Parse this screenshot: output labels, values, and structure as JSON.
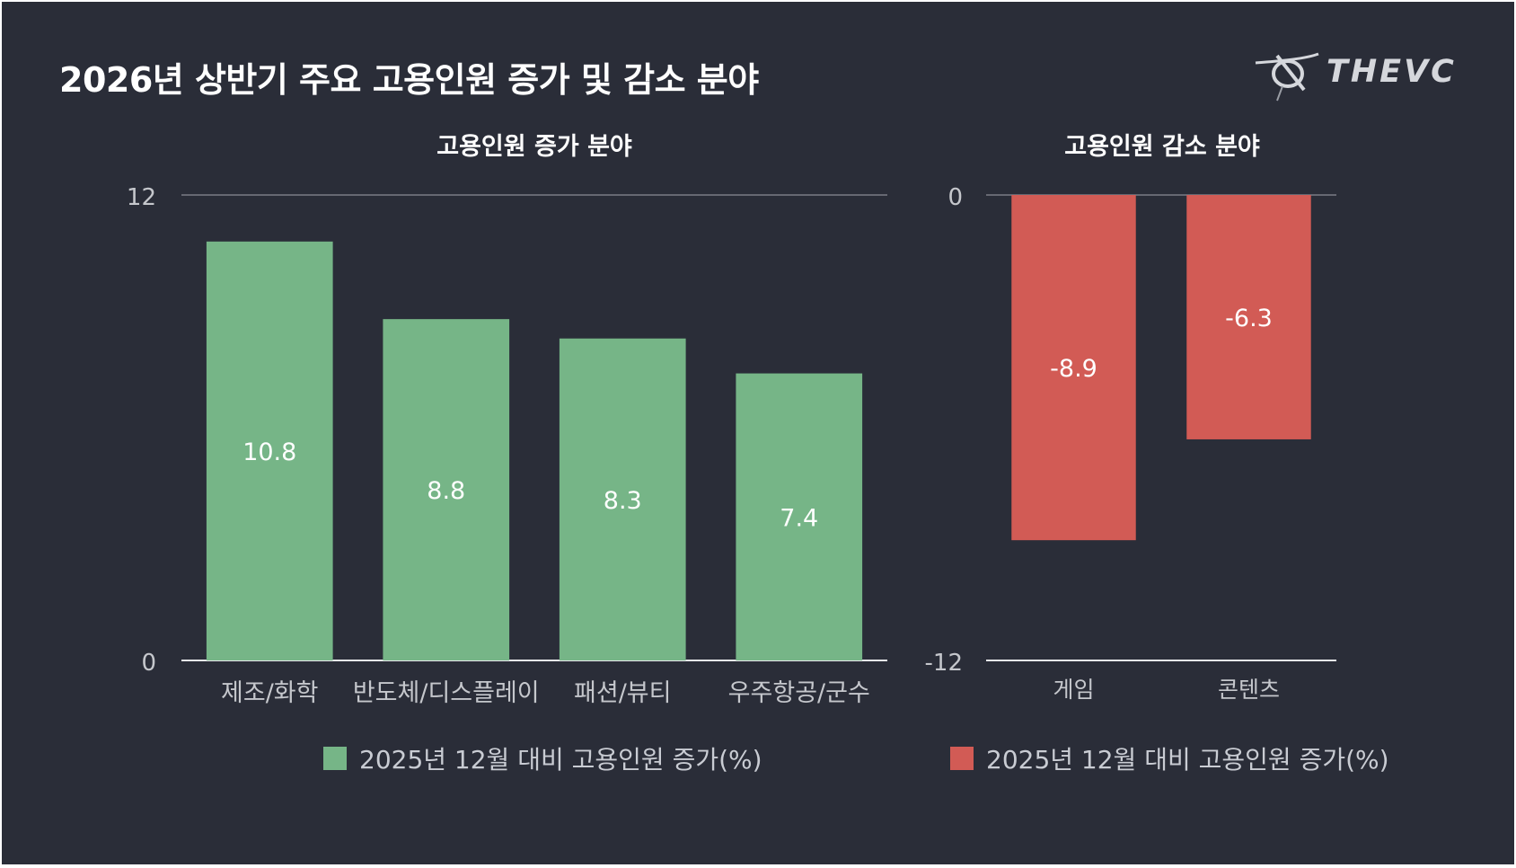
{
  "title": "2026년 상반기 주요 고용인원 증가 및 감소 분야",
  "logo": {
    "text": "THEVC",
    "icon": "thevc-logo-icon"
  },
  "colors": {
    "background": "#2a2d38",
    "increase": "#76b587",
    "decrease": "#d25b55",
    "axis_text": "#c5c7cc"
  },
  "chart_data": [
    {
      "type": "bar",
      "title": "고용인원 증가 분야",
      "categories": [
        "제조/화학",
        "반도체/디스플레이",
        "패션/뷰티",
        "우주항공/군수"
      ],
      "series": [
        {
          "name": "2025년 12월 대비 고용인원 증가(%)",
          "values": [
            10.8,
            8.8,
            8.3,
            7.4
          ]
        }
      ],
      "ylim": [
        0,
        12
      ],
      "yticks": [
        "12",
        "0"
      ],
      "legend": "bottom",
      "grid": false
    },
    {
      "type": "bar",
      "title": "고용인원 감소 분야",
      "categories": [
        "게임",
        "콘텐츠"
      ],
      "series": [
        {
          "name": "2025년 12월 대비 고용인원 증가(%)",
          "values": [
            -8.9,
            -6.3
          ]
        }
      ],
      "ylim": [
        -12,
        0
      ],
      "yticks": [
        "0",
        "-12"
      ],
      "legend": "bottom",
      "grid": false
    }
  ]
}
